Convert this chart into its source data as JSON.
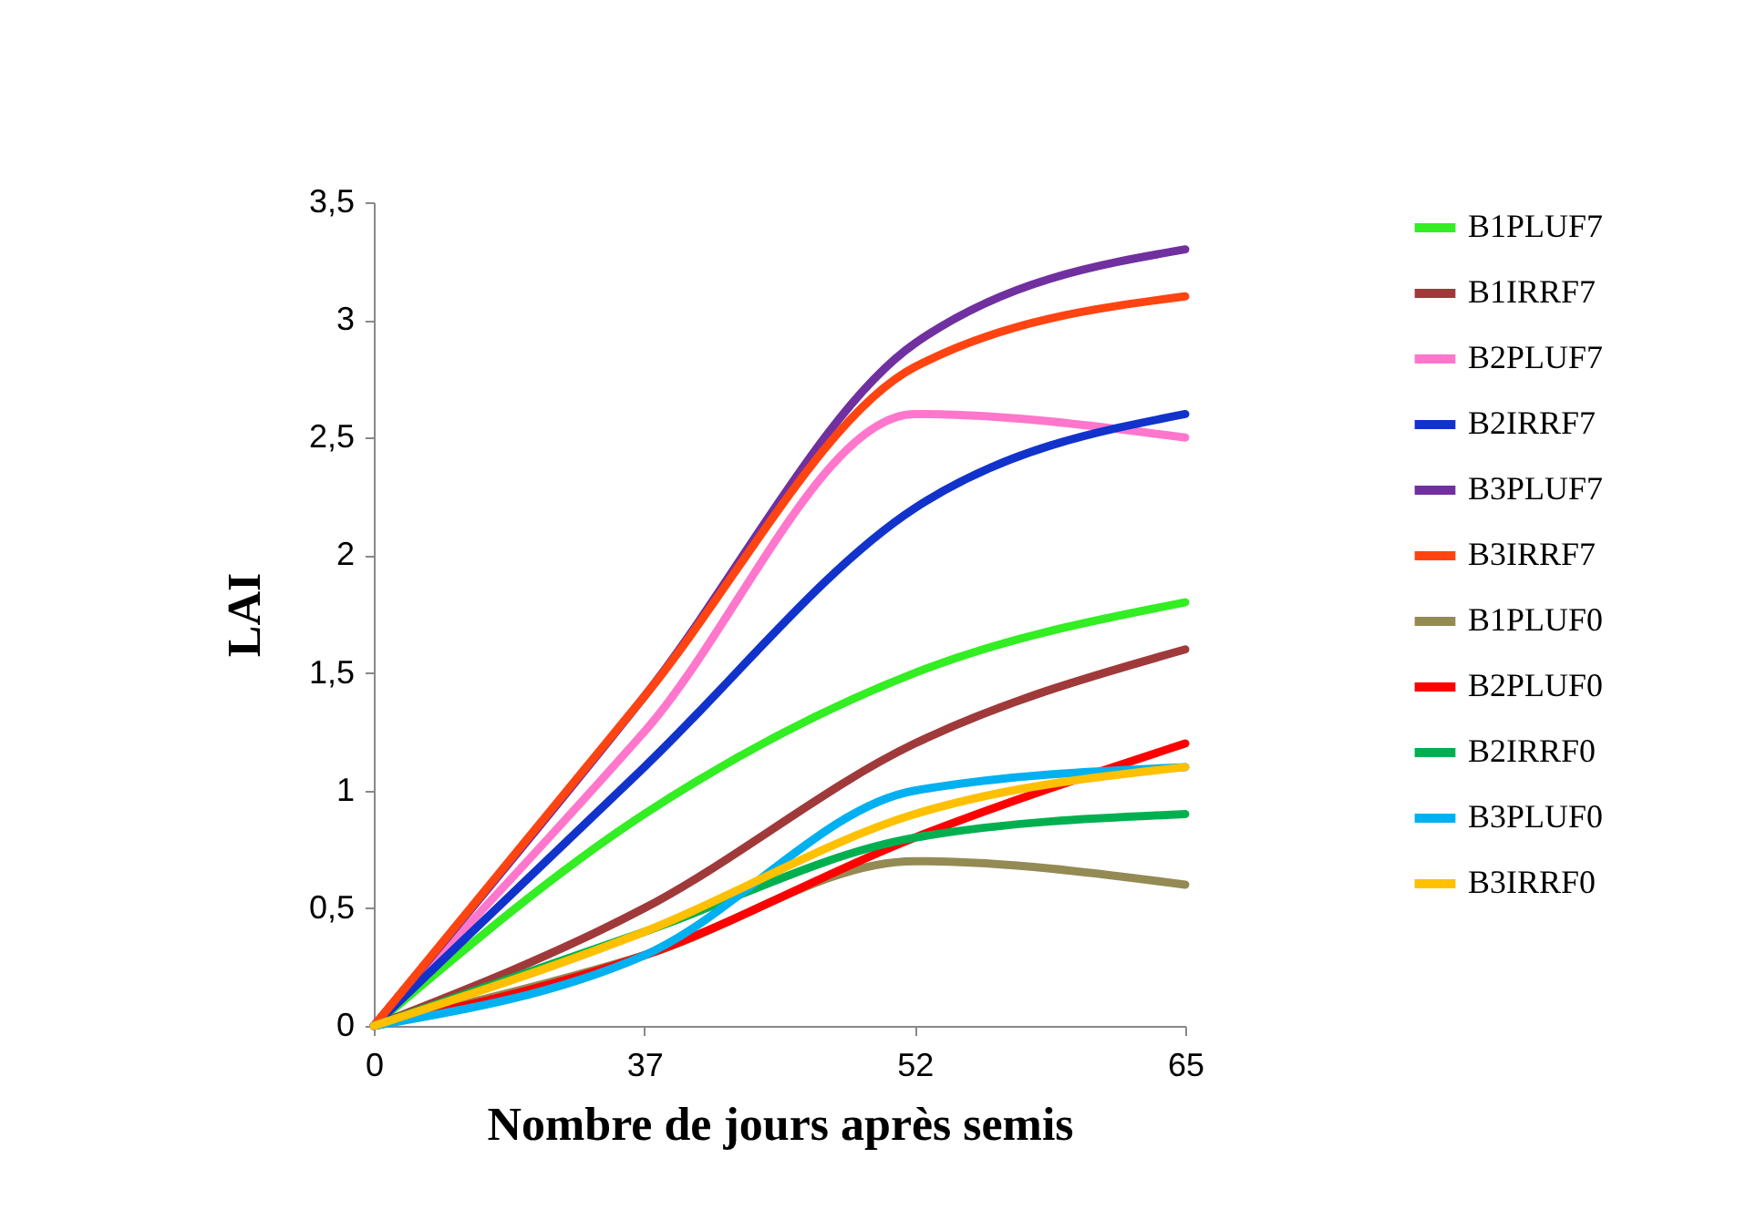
{
  "chart_data": {
    "type": "line",
    "xlabel": "Nombre de jours après semis",
    "ylabel": "LAI",
    "categories": [
      "0",
      "37",
      "52",
      "65"
    ],
    "ylim": [
      0,
      3.5
    ],
    "yticks": [
      0,
      {
        "value": 0.5,
        "label": "0,5"
      },
      1,
      {
        "value": 1.5,
        "label": "1,5"
      },
      2,
      {
        "value": 2.5,
        "label": "2,5"
      },
      3,
      {
        "value": 3.5,
        "label": "3,5"
      }
    ],
    "legend": "right",
    "series": [
      {
        "name": "B1PLUF7",
        "color": "#33ee22",
        "values": [
          0,
          0.9,
          1.5,
          1.8
        ]
      },
      {
        "name": "B1IRRF7",
        "color": "#a0393a",
        "values": [
          0,
          0.5,
          1.2,
          1.6
        ]
      },
      {
        "name": "B2PLUF7",
        "color": "#ff77cc",
        "values": [
          0,
          1.25,
          2.6,
          2.5
        ]
      },
      {
        "name": "B2IRRF7",
        "color": "#1133cc",
        "values": [
          0,
          1.1,
          2.2,
          2.6
        ]
      },
      {
        "name": "B3PLUF7",
        "color": "#7030a0",
        "values": [
          0,
          1.4,
          2.9,
          3.3
        ]
      },
      {
        "name": "B3IRRF7",
        "color": "#ff4411",
        "values": [
          0,
          1.4,
          2.8,
          3.1
        ]
      },
      {
        "name": "B1PLUF0",
        "color": "#948a54",
        "values": [
          0,
          0.3,
          0.7,
          0.6
        ]
      },
      {
        "name": "B2PLUF0",
        "color": "#ff0000",
        "values": [
          0,
          0.3,
          0.8,
          1.2
        ]
      },
      {
        "name": "B2IRRF0",
        "color": "#00b050",
        "values": [
          0,
          0.4,
          0.8,
          0.9
        ]
      },
      {
        "name": "B3PLUF0",
        "color": "#00b0f0",
        "values": [
          0,
          0.3,
          1.0,
          1.1
        ]
      },
      {
        "name": "B3IRRF0",
        "color": "#ffc000",
        "values": [
          0,
          0.4,
          0.9,
          1.1
        ]
      }
    ]
  }
}
